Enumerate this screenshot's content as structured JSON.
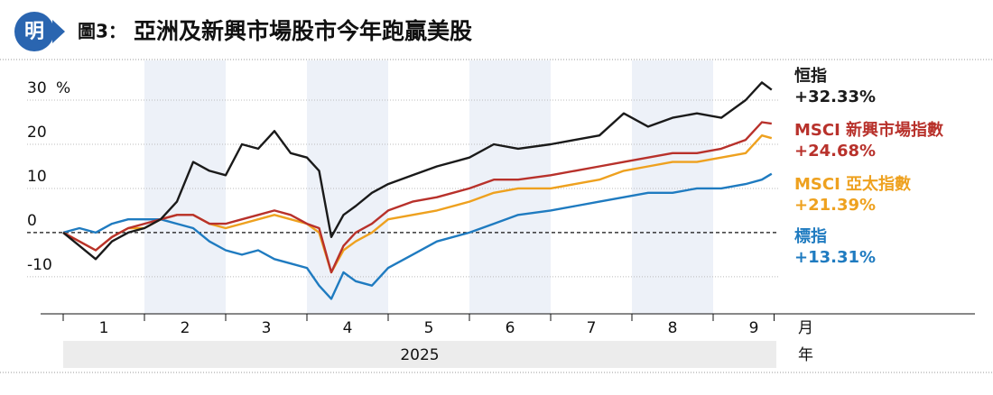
{
  "chart_data": {
    "type": "line",
    "logo": "明",
    "figure_label": "圖3：",
    "title": "亞洲及新興市場股市今年跑贏美股",
    "ylabel": "%",
    "xlabel": "月",
    "year_label": "年",
    "year": "2025",
    "xlim": [
      1,
      9.75
    ],
    "xticks": [
      {
        "value": 1.5,
        "label": "1"
      },
      {
        "value": 2.5,
        "label": "2"
      },
      {
        "value": 3.5,
        "label": "3"
      },
      {
        "value": 4.5,
        "label": "4"
      },
      {
        "value": 5.5,
        "label": "5"
      },
      {
        "value": 6.5,
        "label": "6"
      },
      {
        "value": 7.5,
        "label": "7"
      },
      {
        "value": 8.5,
        "label": "8"
      },
      {
        "value": 9.5,
        "label": "9"
      }
    ],
    "ylim": [
      -18.4,
      39.4
    ],
    "yticks": [
      30,
      20,
      10,
      0,
      -10
    ],
    "x": [
      1.0,
      1.2,
      1.4,
      1.6,
      1.8,
      2.0,
      2.2,
      2.4,
      2.6,
      2.8,
      3.0,
      3.2,
      3.4,
      3.6,
      3.8,
      4.0,
      4.15,
      4.3,
      4.45,
      4.6,
      4.8,
      5.0,
      5.3,
      5.6,
      6.0,
      6.3,
      6.6,
      7.0,
      7.3,
      7.6,
      7.9,
      8.2,
      8.5,
      8.8,
      9.1,
      9.4,
      9.6,
      9.72
    ],
    "series": [
      {
        "name": "恒指",
        "color": "#1a1a1a",
        "values": [
          0,
          -3,
          -6,
          -2,
          0,
          1,
          3,
          7,
          16,
          14,
          13,
          20,
          19,
          23,
          18,
          17,
          14,
          -1,
          4,
          6,
          9,
          11,
          13,
          15,
          17,
          20,
          19,
          20,
          21,
          22,
          27,
          24,
          26,
          27,
          26,
          30,
          34,
          32.33
        ],
        "value_labels": [
          null,
          null,
          null,
          null,
          null,
          null,
          null,
          null,
          null,
          null,
          null,
          null,
          null,
          null,
          null,
          null,
          null,
          null,
          null,
          null,
          null,
          null,
          null,
          null,
          null,
          null,
          null,
          null,
          null,
          null,
          null,
          null,
          null,
          null,
          null,
          null,
          null,
          "+32.33%"
        ]
      },
      {
        "name": "MSCI 新興市場指數",
        "color": "#b8312b",
        "values": [
          0,
          -2,
          -4,
          -1,
          1,
          2,
          3,
          4,
          4,
          2,
          2,
          3,
          4,
          5,
          4,
          2,
          1,
          -9,
          -3,
          0,
          2,
          5,
          7,
          8,
          10,
          12,
          12,
          13,
          14,
          15,
          16,
          17,
          18,
          18,
          19,
          21,
          25,
          24.68
        ],
        "value_labels": [
          null,
          null,
          null,
          null,
          null,
          null,
          null,
          null,
          null,
          null,
          null,
          null,
          null,
          null,
          null,
          null,
          null,
          null,
          null,
          null,
          null,
          null,
          null,
          null,
          null,
          null,
          null,
          null,
          null,
          null,
          null,
          null,
          null,
          null,
          null,
          null,
          null,
          "+24.68%"
        ]
      },
      {
        "name": "MSCI 亞太指數",
        "color": "#eea11f",
        "values": [
          0,
          -2,
          -4,
          -1,
          1,
          1,
          3,
          4,
          4,
          2,
          1,
          2,
          3,
          4,
          3,
          2,
          0,
          -9,
          -4,
          -2,
          0,
          3,
          4,
          5,
          7,
          9,
          10,
          10,
          11,
          12,
          14,
          15,
          16,
          16,
          17,
          18,
          22,
          21.39
        ],
        "value_labels": [
          null,
          null,
          null,
          null,
          null,
          null,
          null,
          null,
          null,
          null,
          null,
          null,
          null,
          null,
          null,
          null,
          null,
          null,
          null,
          null,
          null,
          null,
          null,
          null,
          null,
          null,
          null,
          null,
          null,
          null,
          null,
          null,
          null,
          null,
          null,
          null,
          null,
          "+21.39%"
        ]
      },
      {
        "name": "標指",
        "color": "#1f7bc0",
        "values": [
          0,
          1,
          0,
          2,
          3,
          3,
          3,
          2,
          1,
          -2,
          -4,
          -5,
          -4,
          -6,
          -7,
          -8,
          -12,
          -15,
          -9,
          -11,
          -12,
          -8,
          -5,
          -2,
          0,
          2,
          4,
          5,
          6,
          7,
          8,
          9,
          9,
          10,
          10,
          11,
          12,
          13.31
        ],
        "value_labels": [
          null,
          null,
          null,
          null,
          null,
          null,
          null,
          null,
          null,
          null,
          null,
          null,
          null,
          null,
          null,
          null,
          null,
          null,
          null,
          null,
          null,
          null,
          null,
          null,
          null,
          null,
          null,
          null,
          null,
          null,
          null,
          null,
          null,
          null,
          null,
          null,
          null,
          "+13.31%"
        ]
      }
    ]
  }
}
